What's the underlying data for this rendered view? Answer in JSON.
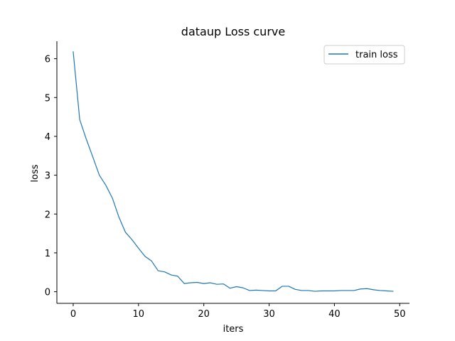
{
  "chart_data": {
    "type": "line",
    "title": "dataup Loss curve",
    "xlabel": "iters",
    "ylabel": "loss",
    "xlim": [
      -2.5,
      51.5
    ],
    "ylim": [
      -0.3,
      6.45
    ],
    "xticks": [
      0,
      10,
      20,
      30,
      40,
      50
    ],
    "yticks": [
      0,
      1,
      2,
      3,
      4,
      5,
      6
    ],
    "xtick_labels": [
      "0",
      "10",
      "20",
      "30",
      "40",
      "50"
    ],
    "ytick_labels": [
      "0",
      "1",
      "2",
      "3",
      "4",
      "5",
      "6"
    ],
    "grid": false,
    "legend": {
      "placement": "top-right",
      "entries": [
        "train loss"
      ]
    },
    "series": [
      {
        "name": "train loss",
        "color": "#1f77b4",
        "x": [
          0,
          1,
          2,
          3,
          4,
          5,
          6,
          7,
          8,
          9,
          10,
          11,
          12,
          13,
          14,
          15,
          16,
          17,
          18,
          19,
          20,
          21,
          22,
          23,
          24,
          25,
          26,
          27,
          28,
          29,
          30,
          31,
          32,
          33,
          34,
          35,
          36,
          37,
          38,
          39,
          40,
          41,
          42,
          43,
          44,
          45,
          46,
          47,
          48,
          49
        ],
        "y": [
          6.18,
          4.43,
          3.93,
          3.47,
          3.0,
          2.74,
          2.41,
          1.92,
          1.53,
          1.34,
          1.12,
          0.91,
          0.79,
          0.54,
          0.51,
          0.43,
          0.4,
          0.21,
          0.23,
          0.24,
          0.21,
          0.23,
          0.19,
          0.2,
          0.09,
          0.13,
          0.1,
          0.03,
          0.04,
          0.03,
          0.02,
          0.02,
          0.14,
          0.14,
          0.06,
          0.03,
          0.03,
          0.01,
          0.02,
          0.02,
          0.02,
          0.03,
          0.03,
          0.03,
          0.07,
          0.08,
          0.05,
          0.03,
          0.02,
          0.01
        ]
      }
    ]
  }
}
